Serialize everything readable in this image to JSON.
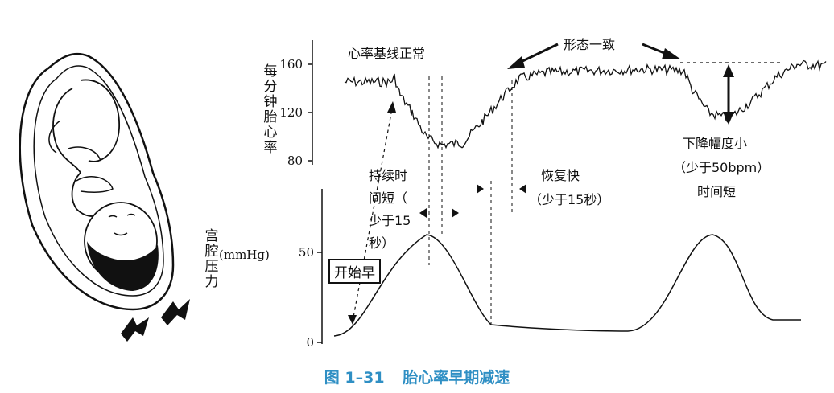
{
  "fhr_axis": {
    "title": "每分钟胎心率",
    "ticks": [
      "160",
      "120",
      "80"
    ]
  },
  "pressure_axis": {
    "title": "宫腔压力",
    "unit": "(mmHg)",
    "ticks": [
      "50",
      "0"
    ]
  },
  "annotations": {
    "baseline_normal": "心率基线正常",
    "same_shape": "形态一致",
    "onset_early": "开始早",
    "duration_line1": "持续时",
    "duration_line2": "间短（",
    "duration_line3": "少于15",
    "duration_line4": "秒）",
    "recovery_line1": "恢复快",
    "recovery_line2": "（少于15秒）",
    "amplitude_line1": "下降幅度小",
    "amplitude_line2": "（少于50bpm）",
    "amplitude_line3": "时间短"
  },
  "caption": {
    "number": "图 1–31",
    "title": "胎心率早期减速"
  },
  "colors": {
    "caption": "#2f8fc4",
    "ink": "#111111"
  }
}
